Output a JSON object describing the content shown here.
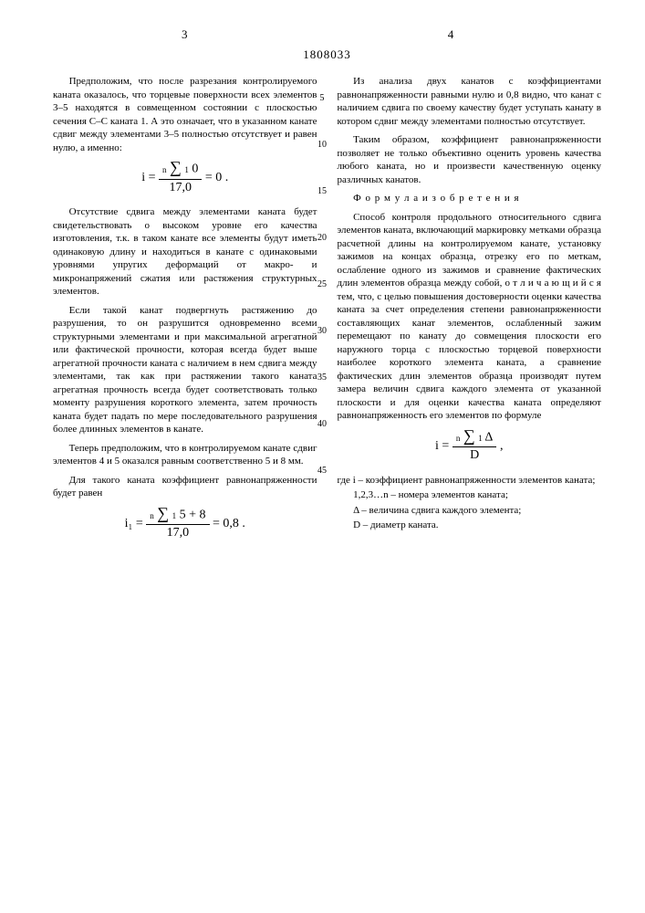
{
  "page_left": "3",
  "page_right": "4",
  "doc_number": "1808033",
  "gutter": [
    "5",
    "10",
    "15",
    "20",
    "25",
    "30",
    "35",
    "40",
    "45"
  ],
  "left": {
    "p1": "Предположим, что после разрезания контролируемого каната оказалось, что торцевые поверхности всех элементов 3–5 находятся в совмещенном состоянии с плоскостью сечения С–С каната 1. А это означает, что в указанном канате сдвиг между элементами 3–5 полностью отсутствует и равен нулю, а именно:",
    "f1_i": "i =",
    "f1_num_top": "n",
    "f1_num_sym": "∑",
    "f1_num_bot": "1",
    "f1_num_rhs": "0",
    "f1_den": "17,0",
    "f1_rhs": "= 0 .",
    "p2": "Отсутствие сдвига между элементами каната будет свидетельствовать о высоком уровне его качества изготовления, т.к. в таком канате все элементы будут иметь одинаковую длину и находиться в канате с одинаковыми уровнями упругих деформаций от макро- и микронапряжений сжатия или растяжения структурных элементов.",
    "p3": "Если такой канат подвергнуть растяжению до разрушения, то он разрушится одновременно всеми структурными элементами и при максимальной агрегатной или фактической прочности, которая всегда будет выше агрегатной прочности каната с наличием в нем сдвига между элементами, так как при растяжении такого каната агрегатная прочность всегда будет соответствовать только моменту разрушения короткого элемента, затем прочность каната будет падать по мере последовательного разрушения более длинных элементов в канате.",
    "p4": "Теперь предположим, что в контролируемом канате сдвиг элементов 4 и 5 оказался равным соответственно 5 и 8 мм.",
    "p5": "Для такого каната коэффициент равнонапряженности будет равен",
    "f2_i": "i₁ =",
    "f2_num_rhs": "5 + 8",
    "f2_den": "17,0",
    "f2_rhs": "= 0,8 ."
  },
  "right": {
    "p1": "Из анализа двух канатов с коэффициентами равнонапряженности равными нулю и 0,8 видно, что канат с наличием сдвига по своему качеству будет уступать канату в котором сдвиг между элементами полностью отсутствует.",
    "p2": "Таким образом, коэффициент равнонапряженности позволяет не только объективно оценить уровень качества любого каната, но и произвести качественную оценку различных канатов.",
    "sec": "Ф о р м у л а  и з о б р е т е н и я",
    "p3": "Способ контроля продольного относительного сдвига элементов каната, включающий маркировку метками образца расчетной длины на контролируемом канате, установку зажимов на концах образца, отрезку его по меткам, ослабление одного из зажимов и сравнение фактических длин элементов образца между собой, о т л и ч а ю щ и й с я  тем, что, с целью повышения достоверности оценки качества каната за счет определения степени равнонапряженности составляющих канат элементов, ослабленный зажим перемещают по канату до совмещения плоскости его наружного торца с плоскостью торцевой поверхности наиболее короткого элемента каната, а сравнение фактических длин элементов образца производят путем замера величин сдвига каждого элемента от указанной плоскости и для оценки качества каната определяют равнонапряженность его элементов по формуле",
    "f3_i": "i =",
    "f3_num_rhs": "Δ",
    "f3_den": "D",
    "f3_rhs": ",",
    "vars_label": "где i – коэффициент равнонапряженности элементов каната;",
    "v1": "1,2,3…n – номера элементов каната;",
    "v2": "Δ – величина сдвига каждого элемента;",
    "v3": "D – диаметр каната."
  }
}
